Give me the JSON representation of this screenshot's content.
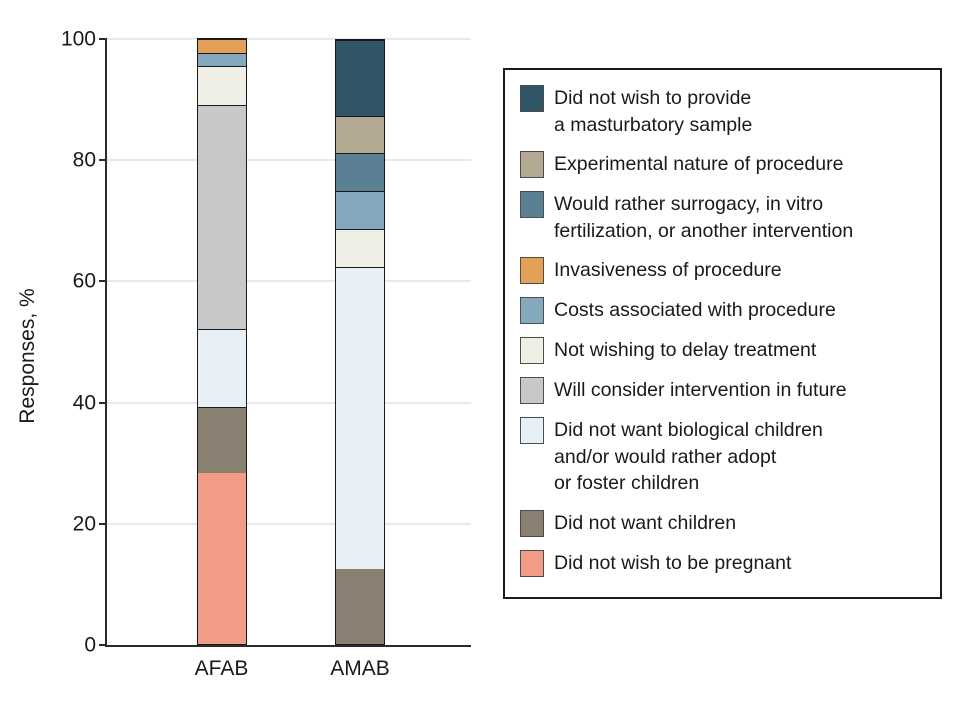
{
  "chart_data": {
    "type": "stacked-bar",
    "title": "",
    "xlabel": "",
    "ylabel": "Responses, %",
    "ylim": [
      0,
      100
    ],
    "yticks": [
      0,
      20,
      40,
      60,
      80,
      100
    ],
    "grid": true,
    "legend_position": "right",
    "categories": [
      "AFAB",
      "AMAB"
    ],
    "series": [
      {
        "key": "pregnant",
        "name": "Did not wish to be pregnant",
        "color": "#F29B86",
        "values": [
          28.3,
          0
        ]
      },
      {
        "key": "children",
        "name": "Did not want children",
        "color": "#8A8071",
        "values": [
          10.9,
          12.5
        ]
      },
      {
        "key": "biological-children",
        "name": "Did not want biological children and/or would rather adopt or foster children",
        "color": "#E7F0F4",
        "values": [
          13.0,
          50.0
        ]
      },
      {
        "key": "future-intervention",
        "name": "Will consider intervention in future",
        "color": "#C7C8CA",
        "values": [
          37.0,
          0
        ]
      },
      {
        "key": "delay-treatment",
        "name": "Not wishing to delay treatment",
        "color": "#F0EFE5",
        "values": [
          6.5,
          6.25
        ]
      },
      {
        "key": "costs",
        "name": "Costs associated with procedure",
        "color": "#85A9BC",
        "values": [
          2.2,
          6.25
        ]
      },
      {
        "key": "invasiveness",
        "name": "Invasiveness of procedure",
        "color": "#E3A158",
        "values": [
          2.2,
          0
        ]
      },
      {
        "key": "surrogacy-ivf",
        "name": "Would rather surrogacy, in vitro fertilization, or another intervention",
        "color": "#5B8093",
        "values": [
          0,
          6.25
        ]
      },
      {
        "key": "experimental",
        "name": "Experimental nature of procedure",
        "color": "#B3A891",
        "values": [
          0,
          6.25
        ]
      },
      {
        "key": "masturbatory-sample",
        "name": "Did not wish to provide a masturbatory sample",
        "color": "#2F5566",
        "values": [
          0,
          12.5
        ]
      }
    ],
    "legend_items": [
      {
        "key": "masturbatory-sample",
        "color": "#2F5566",
        "lines": [
          "Did not wish to provide",
          "a masturbatory sample"
        ]
      },
      {
        "key": "experimental",
        "color": "#B3A891",
        "lines": [
          "Experimental nature of procedure"
        ]
      },
      {
        "key": "surrogacy-ivf",
        "color": "#5B8093",
        "lines": [
          "Would rather surrogacy, in vitro",
          "fertilization, or another intervention"
        ]
      },
      {
        "key": "invasiveness",
        "color": "#E3A158",
        "lines": [
          "Invasiveness of procedure"
        ]
      },
      {
        "key": "costs",
        "color": "#85A9BC",
        "lines": [
          "Costs associated with procedure"
        ]
      },
      {
        "key": "delay-treatment",
        "color": "#F0EFE5",
        "lines": [
          "Not wishing to delay treatment"
        ]
      },
      {
        "key": "future-intervention",
        "color": "#C7C8CA",
        "lines": [
          "Will consider intervention in future"
        ]
      },
      {
        "key": "biological-children",
        "color": "#E7F0F4",
        "lines": [
          "Did not want biological children",
          "and/or would rather adopt",
          "or foster children"
        ]
      },
      {
        "key": "children",
        "color": "#8A8071",
        "lines": [
          "Did not want children"
        ]
      },
      {
        "key": "pregnant",
        "color": "#F29B86",
        "lines": [
          "Did not wish to be pregnant"
        ]
      }
    ],
    "colors": {
      "axis": "#2b2b2b",
      "grid": "#e9e9e9",
      "text": "#1a1a1a",
      "segment_border": "#1a1a1a"
    }
  }
}
